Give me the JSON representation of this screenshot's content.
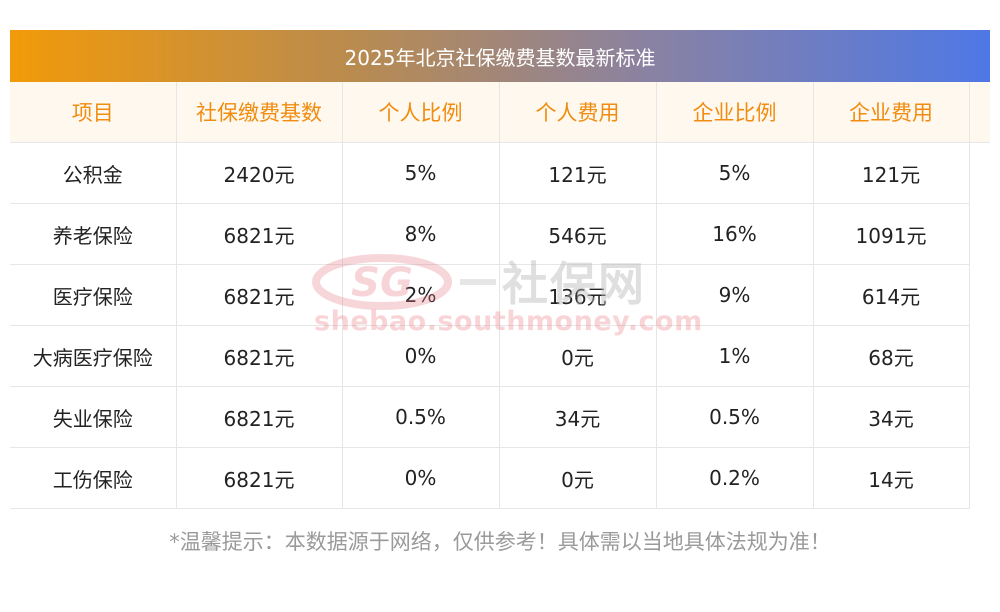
{
  "title": "2025年北京社保缴费基数最新标准",
  "table": {
    "headers": [
      "项目",
      "社保缴费基数",
      "个人比例",
      "个人费用",
      "企业比例",
      "企业费用"
    ],
    "rows": [
      [
        "公积金",
        "2420元",
        "5%",
        "121元",
        "5%",
        "121元"
      ],
      [
        "养老保险",
        "6821元",
        "8%",
        "546元",
        "16%",
        "1091元"
      ],
      [
        "医疗保险",
        "6821元",
        "2%",
        "136元",
        "9%",
        "614元"
      ],
      [
        "大病医疗保险",
        "6821元",
        "0%",
        "0元",
        "1%",
        "68元"
      ],
      [
        "失业保险",
        "6821元",
        "0.5%",
        "34元",
        "0.5%",
        "34元"
      ],
      [
        "工伤保险",
        "6821元",
        "0%",
        "0元",
        "0.2%",
        "14元"
      ]
    ]
  },
  "watermark": {
    "logo_text": "SG",
    "name": "社保网",
    "url": "shebao.southmoney.com"
  },
  "footnote": "*温馨提示：本数据源于网络，仅供参考！具体需以当地具体法规为准！",
  "colors": {
    "title_gradient_start": "#f29a09",
    "title_gradient_end": "#4e78e6",
    "header_text": "#f08c10",
    "header_background": "#fff8ef",
    "footnote_text": "#9a9a9a"
  }
}
